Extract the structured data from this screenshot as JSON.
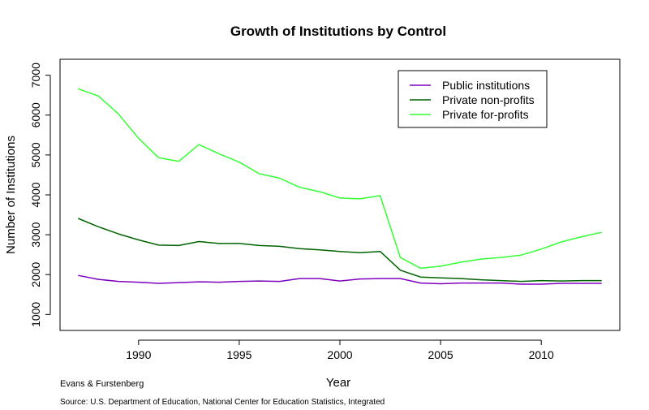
{
  "chart_data": {
    "type": "line",
    "title": "Growth of Institutions by Control",
    "xlabel": "Year",
    "ylabel": "Number of Institutions",
    "xlim": [
      1986.6,
      1988.0
    ],
    "xlim_full": [
      1986.1,
      2013.9
    ],
    "ylim": [
      600,
      7400
    ],
    "x_ticks": [
      1990,
      1995,
      2000,
      2005,
      2010
    ],
    "y_ticks": [
      1000,
      2000,
      3000,
      4000,
      5000,
      6000,
      7000
    ],
    "legend_position": "top-right",
    "x": [
      1987,
      1988,
      1989,
      1990,
      1991,
      1992,
      1993,
      1994,
      1995,
      1996,
      1997,
      1998,
      1999,
      2000,
      2001,
      2002,
      2003,
      2004,
      2005,
      2006,
      2007,
      2008,
      2009,
      2010,
      2011,
      2012,
      2013
    ],
    "series": [
      {
        "name": "Public institutions",
        "color": "#8000c0",
        "values": [
          1980,
          1880,
          1830,
          1810,
          1780,
          1800,
          1820,
          1810,
          1830,
          1840,
          1830,
          1900,
          1900,
          1840,
          1890,
          1900,
          1900,
          1790,
          1770,
          1790,
          1790,
          1790,
          1760,
          1760,
          1780,
          1780,
          1780
        ]
      },
      {
        "name": "Private non-profits",
        "color": "#006400",
        "values": [
          3410,
          3200,
          3020,
          2870,
          2740,
          2730,
          2830,
          2780,
          2780,
          2730,
          2710,
          2650,
          2620,
          2580,
          2550,
          2580,
          2110,
          1940,
          1920,
          1900,
          1870,
          1850,
          1830,
          1850,
          1840,
          1850,
          1850
        ]
      },
      {
        "name": "Private for-profits",
        "color": "#33ff33",
        "values": [
          6660,
          6480,
          6030,
          5420,
          4930,
          4840,
          5260,
          5030,
          4820,
          4530,
          4420,
          4190,
          4080,
          3920,
          3900,
          3980,
          2430,
          2160,
          2210,
          2310,
          2390,
          2430,
          2490,
          2640,
          2820,
          2950,
          3060
        ]
      }
    ]
  },
  "caption_left": "Evans & Furstenberg",
  "source_note": "Source: U.S. Department of Education, National Center for Education Statistics, Integrated"
}
